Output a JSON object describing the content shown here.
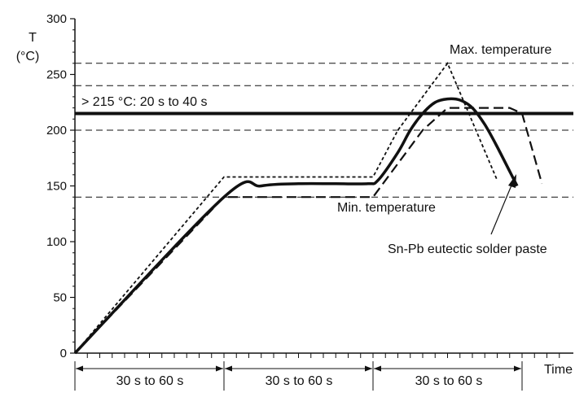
{
  "chart_data": {
    "type": "line",
    "ylabel": "T",
    "ylabel_unit": "(°C)",
    "xlabel": "Time",
    "ylim": [
      0,
      300
    ],
    "yticks": [
      "0",
      "50",
      "100",
      "150",
      "200",
      "250",
      "300"
    ],
    "grid": false,
    "reference_lines": [
      {
        "y": 260,
        "style": "dashed"
      },
      {
        "y": 240,
        "style": "dashed"
      },
      {
        "y": 200,
        "style": "dashed"
      },
      {
        "y": 140,
        "style": "dashed"
      },
      {
        "y": 215,
        "style": "solid-thick"
      }
    ],
    "annotations": {
      "max": "Max. temperature",
      "min": "Min. temperature",
      "threshold": "> 215 °C: 20 s to 40 s",
      "paste": "Sn-Pb eutectic solder paste"
    },
    "intervals": [
      "30 s to 60 s",
      "30 s to 60 s",
      "30 s to 60 s"
    ],
    "series": [
      {
        "style": "dotted",
        "t": [
          0,
          60,
          120,
          130,
          150,
          170
        ],
        "T": [
          0,
          158,
          158,
          200,
          260,
          155
        ]
      },
      {
        "style": "solid",
        "t": [
          0,
          60,
          75,
          90,
          105,
          118,
          122,
          130,
          135,
          140,
          145,
          150,
          155,
          160,
          165,
          170,
          178
        ],
        "T": [
          0,
          140,
          150,
          152,
          152,
          152,
          155,
          180,
          200,
          215,
          225,
          228,
          227,
          220,
          205,
          185,
          150
        ]
      },
      {
        "style": "dashed",
        "t": [
          0,
          60,
          120,
          130,
          140,
          150,
          175,
          180,
          188
        ],
        "T": [
          0,
          140,
          140,
          170,
          200,
          220,
          220,
          215,
          152
        ]
      }
    ]
  }
}
